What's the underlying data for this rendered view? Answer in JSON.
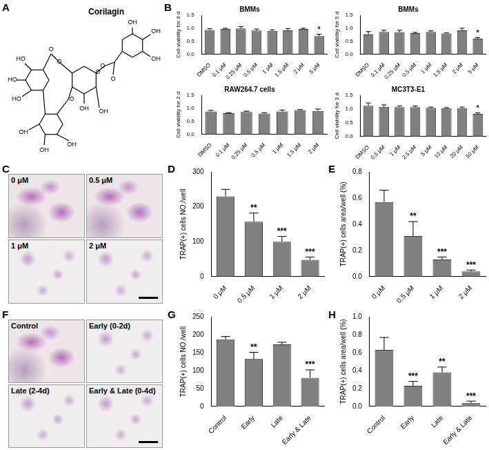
{
  "chart_data": [
    {
      "type": "bar",
      "title": "BMMs",
      "y_label": "Cell viability for 3 d",
      "categories": [
        "DMSO",
        "0.1 μM",
        "0.25 μM",
        "0.5 μM",
        "1 μM",
        "1.5 μM",
        "2 μM",
        "5 μM"
      ],
      "values": [
        0.93,
        0.97,
        0.99,
        0.91,
        0.9,
        0.92,
        0.97,
        0.7
      ],
      "errors": [
        0.05,
        0.03,
        0.07,
        0.06,
        0.04,
        0.07,
        0.03,
        0.07
      ],
      "annotations": [
        null,
        null,
        null,
        null,
        null,
        null,
        null,
        "*"
      ],
      "color": "#808080",
      "ylim": [
        0,
        1.5
      ],
      "yticks": [
        {
          "value": 0,
          "label": "0.0"
        },
        {
          "value": 0.5,
          "label": "0.5"
        },
        {
          "value": 1,
          "label": "1.0"
        },
        {
          "value": 1.5,
          "label": "1.5"
        }
      ],
      "grid": false
    },
    {
      "type": "bar",
      "title": "BMMs",
      "y_label": "Cell viability for 5 d",
      "categories": [
        "DMSO",
        "0.1 μM",
        "0.25 μM",
        "0.5 μM",
        "1 μM",
        "1.5 μM",
        "2 μM",
        "5 μM"
      ],
      "values": [
        0.76,
        0.86,
        0.85,
        0.81,
        0.86,
        0.8,
        0.92,
        0.6
      ],
      "errors": [
        0.11,
        0.06,
        0.07,
        0.03,
        0.04,
        0.02,
        0.08,
        0.04
      ],
      "annotations": [
        null,
        null,
        null,
        null,
        null,
        null,
        null,
        "*"
      ],
      "color": "#808080",
      "ylim": [
        0,
        1.5
      ],
      "yticks": [
        {
          "value": 0,
          "label": "0.0"
        },
        {
          "value": 0.5,
          "label": "0.5"
        },
        {
          "value": 1,
          "label": "1.0"
        },
        {
          "value": 1.5,
          "label": "1.5"
        }
      ],
      "grid": false
    },
    {
      "type": "bar",
      "title": "RAW264.7 cells",
      "y_label": "Cell viability for 2 d",
      "categories": [
        "DMSO",
        "0.1 μM",
        "0.25 μM",
        "0.5 μM",
        "1 μM",
        "1.5 μM",
        "2 μM"
      ],
      "values": [
        0.88,
        0.81,
        0.86,
        0.8,
        0.88,
        0.93,
        0.9
      ],
      "errors": [
        0.04,
        0.02,
        0.03,
        0.03,
        0.05,
        0.02,
        0.07
      ],
      "annotations": [
        null,
        null,
        null,
        null,
        null,
        null,
        null
      ],
      "color": "#808080",
      "ylim": [
        0,
        1.5
      ],
      "yticks": [
        {
          "value": 0,
          "label": "0.0"
        },
        {
          "value": 0.5,
          "label": "0.5"
        },
        {
          "value": 1,
          "label": "1.0"
        },
        {
          "value": 1.5,
          "label": "1.5"
        }
      ],
      "grid": false
    },
    {
      "type": "bar",
      "title": "MC3T3-E1",
      "y_label": "Cell viability for 3 d",
      "categories": [
        "DMSO",
        "0.5 μM",
        "1 μM",
        "2.5 μM",
        "5 μM",
        "10 μM",
        "20 μM",
        "50 μM"
      ],
      "values": [
        1.12,
        1.08,
        1.07,
        1.07,
        1.04,
        1.03,
        1.03,
        0.82
      ],
      "errors": [
        0.1,
        0.07,
        0.04,
        0.04,
        0.03,
        0.02,
        0.04,
        0.04
      ],
      "annotations": [
        null,
        null,
        null,
        null,
        null,
        null,
        null,
        "*"
      ],
      "color": "#808080",
      "ylim": [
        0,
        1.5
      ],
      "yticks": [
        {
          "value": 0,
          "label": "0.0"
        },
        {
          "value": 0.5,
          "label": "0.5"
        },
        {
          "value": 1,
          "label": "1.0"
        },
        {
          "value": 1.5,
          "label": "1.5"
        }
      ],
      "grid": false
    },
    {
      "type": "bar",
      "y_label": "TRAP(+) cells NO./well",
      "categories": [
        "0 μM",
        "0.5 μM",
        "1 μM",
        "2 μM"
      ],
      "values": [
        230,
        157,
        100,
        48
      ],
      "errors": [
        20,
        25,
        15,
        8
      ],
      "annotations": [
        null,
        "**",
        "***",
        "***"
      ],
      "color": "#808080",
      "ylim": [
        0,
        300
      ],
      "yticks": [
        0,
        100,
        200,
        300
      ],
      "grid": false
    },
    {
      "type": "bar",
      "y_label": "TRAP(+) cells area/well (%)",
      "categories": [
        "0 μM",
        "0.5 μM",
        "1 μM",
        "2 μM"
      ],
      "values": [
        0.57,
        0.31,
        0.13,
        0.04
      ],
      "errors": [
        0.09,
        0.11,
        0.02,
        0.01
      ],
      "annotations": [
        null,
        "**",
        "***",
        "***"
      ],
      "color": "#808080",
      "ylim": [
        0,
        0.8
      ],
      "yticks": [
        {
          "value": 0,
          "label": "0.0"
        },
        0.2,
        0.4,
        0.6,
        0.8
      ],
      "grid": false
    },
    {
      "type": "bar",
      "y_label": "TRAP(+) cells NO./well",
      "categories": [
        "Control",
        "Early",
        "Late",
        "Early & Late"
      ],
      "values": [
        187,
        133,
        173,
        80
      ],
      "errors": [
        8,
        18,
        6,
        22
      ],
      "annotations": [
        null,
        "**",
        null,
        "***"
      ],
      "color": "#808080",
      "ylim": [
        0,
        250
      ],
      "yticks": [
        0,
        50,
        100,
        150,
        200,
        250
      ],
      "grid": false
    },
    {
      "type": "bar",
      "y_label": "TRAP(+) cells area/well (%)",
      "categories": [
        "Control",
        "Early",
        "Late",
        "Early & Late"
      ],
      "values": [
        0.63,
        0.23,
        0.38,
        0.04
      ],
      "errors": [
        0.14,
        0.05,
        0.06,
        0.02
      ],
      "annotations": [
        null,
        "***",
        "**",
        "***"
      ],
      "color": "#808080",
      "ylim": [
        0,
        1
      ],
      "yticks": [
        {
          "value": 0,
          "label": "0.0"
        },
        0.2,
        0.4,
        0.6,
        0.8,
        {
          "value": 1,
          "label": "1.0"
        }
      ],
      "grid": false
    }
  ],
  "figure": {
    "panel_letters": [
      "A",
      "B",
      "C",
      "D",
      "E",
      "F",
      "G",
      "H"
    ],
    "structure": {
      "name": "Corilagin",
      "atom_labels": [
        "OH",
        "OH",
        "OH",
        "O",
        "O",
        "O",
        "O",
        "OH",
        "OH",
        "HO",
        "HO",
        "HO",
        "O",
        "O",
        "OH",
        "OH",
        "OH"
      ]
    },
    "micrographs": [
      {
        "labels": [
          "0 μM",
          "0.5 μM",
          "1 μM",
          "2 μM"
        ]
      },
      {
        "labels": [
          "Control",
          "Early (0-2d)",
          "Late (2-4d)",
          "Early & Late (0-4d)"
        ]
      }
    ]
  }
}
